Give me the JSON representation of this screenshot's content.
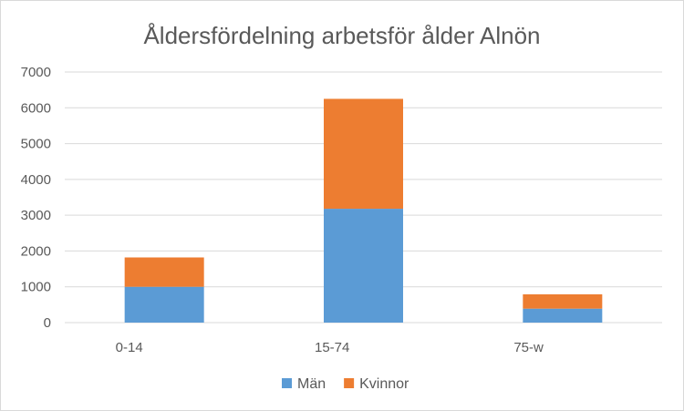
{
  "chart_data": {
    "type": "bar",
    "stacked": true,
    "title": "Åldersfördelning arbetsför ålder Alnön",
    "categories": [
      "0-14",
      "15-74",
      "75-w"
    ],
    "series": [
      {
        "name": "Män",
        "values": [
          1000,
          3180,
          390
        ],
        "color": "#5b9bd5"
      },
      {
        "name": "Kvinnor",
        "values": [
          820,
          3070,
          400
        ],
        "color": "#ed7d31"
      }
    ],
    "ylim": [
      0,
      7000
    ],
    "yticks": [
      0,
      1000,
      2000,
      3000,
      4000,
      5000,
      6000,
      7000
    ],
    "grid": true,
    "legend_position": "bottom",
    "gridline_color": "#d9d9d9"
  }
}
